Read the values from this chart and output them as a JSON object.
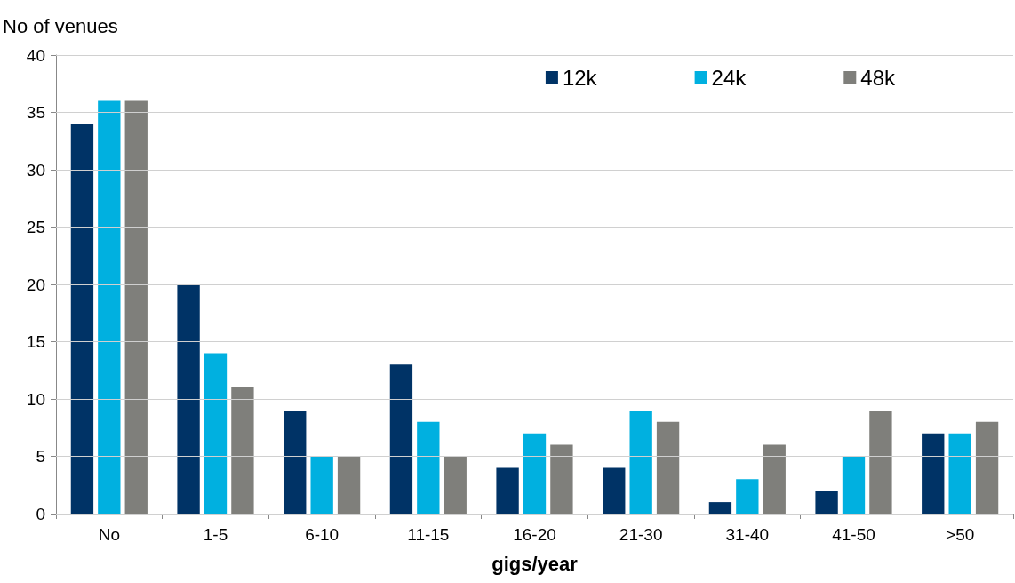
{
  "chart_data": {
    "type": "bar",
    "ylabel": "No of venues",
    "xlabel": "gigs/year",
    "categories": [
      "No",
      "1-5",
      "6-10",
      "11-15",
      "16-20",
      "21-30",
      "31-40",
      "41-50",
      ">50"
    ],
    "series": [
      {
        "name": "12k",
        "color": "#003366",
        "values": [
          34,
          20,
          9,
          13,
          4,
          4,
          1,
          2,
          7
        ]
      },
      {
        "name": "24k",
        "color": "#00b0e0",
        "values": [
          36,
          14,
          5,
          8,
          7,
          9,
          3,
          5,
          7
        ]
      },
      {
        "name": "48k",
        "color": "#7f7f7b",
        "values": [
          36,
          11,
          5,
          5,
          6,
          8,
          6,
          9,
          8
        ]
      }
    ],
    "ylim": [
      0,
      40
    ],
    "yticks": [
      0,
      5,
      10,
      15,
      20,
      25,
      30,
      35,
      40
    ],
    "grid": "y",
    "legend": "top right"
  }
}
